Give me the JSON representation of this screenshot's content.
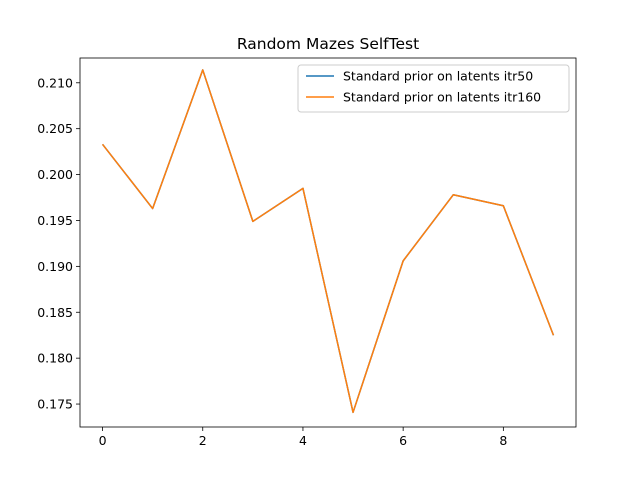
{
  "chart_data": {
    "type": "line",
    "title": "Random Mazes SelfTest",
    "xlabel": "",
    "ylabel": "",
    "x": [
      0,
      1,
      2,
      3,
      4,
      5,
      6,
      7,
      8,
      9
    ],
    "xlim": [
      -0.45,
      9.45
    ],
    "ylim": [
      0.1725,
      0.2127
    ],
    "xticks": [
      0,
      2,
      4,
      6,
      8
    ],
    "yticks": [
      0.175,
      0.18,
      0.185,
      0.19,
      0.195,
      0.2,
      0.205,
      0.21
    ],
    "grid": false,
    "legend_position": "upper right",
    "series": [
      {
        "name": "Standard prior on latents itr50",
        "color": "#1f77b4",
        "values": [
          0.2033,
          0.1963,
          0.2114,
          0.1949,
          0.1985,
          0.1741,
          0.1906,
          0.1978,
          0.1966,
          0.1825
        ]
      },
      {
        "name": "Standard prior on latents itr160",
        "color": "#ff7f0e",
        "values": [
          0.2033,
          0.1963,
          0.2114,
          0.1949,
          0.1985,
          0.1741,
          0.1906,
          0.1978,
          0.1966,
          0.1825
        ]
      }
    ]
  }
}
